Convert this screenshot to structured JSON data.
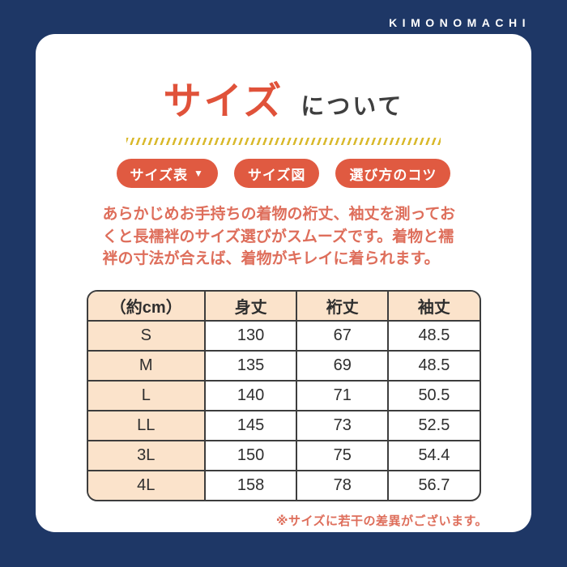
{
  "brand": "KIMONOMACHI",
  "header": {
    "title_main": "サイズ",
    "title_suffix": "について"
  },
  "nav_buttons": [
    {
      "label": "サイズ表",
      "caret": "▼"
    },
    {
      "label": "サイズ図"
    },
    {
      "label": "選び方のコツ"
    }
  ],
  "description": "あらかじめお手持ちの着物の裄丈、袖丈を測っておくと長襦袢のサイズ選びがスムーズです。着物と襦袢の寸法が合えば、着物がキレイに着られます。",
  "size_table": {
    "unit_header": "（約cm）",
    "columns": [
      "身丈",
      "裄丈",
      "袖丈"
    ],
    "rows": [
      {
        "size": "S",
        "mitake": "130",
        "yukitake": "67",
        "sodetake": "48.5"
      },
      {
        "size": "M",
        "mitake": "135",
        "yukitake": "69",
        "sodetake": "48.5"
      },
      {
        "size": "L",
        "mitake": "140",
        "yukitake": "71",
        "sodetake": "50.5"
      },
      {
        "size": "LL",
        "mitake": "145",
        "yukitake": "73",
        "sodetake": "52.5"
      },
      {
        "size": "3L",
        "mitake": "150",
        "yukitake": "75",
        "sodetake": "54.4"
      },
      {
        "size": "4L",
        "mitake": "158",
        "yukitake": "78",
        "sodetake": "56.7"
      }
    ]
  },
  "footnote": "※サイズに若干の差異がございます。",
  "colors": {
    "background_navy": "#1e3766",
    "accent_red": "#e05a41",
    "title_red": "#e0523a",
    "text_salmon": "#de6e5b",
    "table_header_peach": "#fbe3cb",
    "stripe_yellow": "#d9b92c",
    "table_border": "#3d3d3d"
  }
}
